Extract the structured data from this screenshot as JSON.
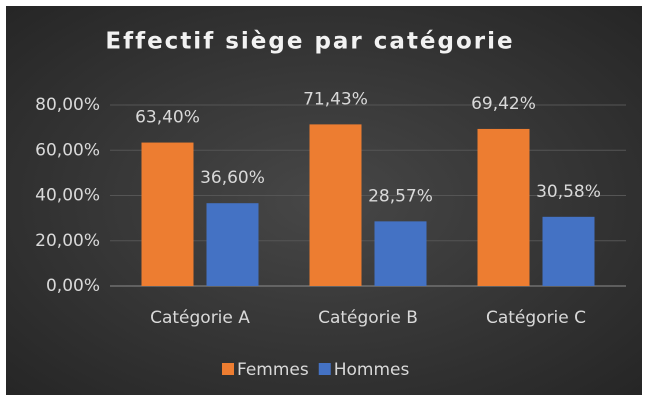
{
  "chart_data": {
    "type": "bar",
    "title": "Effectif siège par catégorie",
    "categories": [
      "Catégorie A",
      "Catégorie B",
      "Catégorie C"
    ],
    "series": [
      {
        "name": "Femmes",
        "color": "#ed7d31",
        "values": [
          63.4,
          71.43,
          69.42
        ],
        "value_labels": [
          "63,40%",
          "71,43%",
          "69,42%"
        ]
      },
      {
        "name": "Hommes",
        "color": "#4472c4",
        "values": [
          36.6,
          28.57,
          30.58
        ],
        "value_labels": [
          "36,60%",
          "28,57%",
          "30,58%"
        ]
      }
    ],
    "ylim": [
      0,
      80
    ],
    "yticks": [
      {
        "value": 0,
        "label": "0,00%"
      },
      {
        "value": 20,
        "label": "20,00%"
      },
      {
        "value": 40,
        "label": "40,00%"
      },
      {
        "value": 60,
        "label": "60,00%"
      },
      {
        "value": 80,
        "label": "80,00%"
      }
    ],
    "grid": true,
    "legend": "bottom"
  }
}
